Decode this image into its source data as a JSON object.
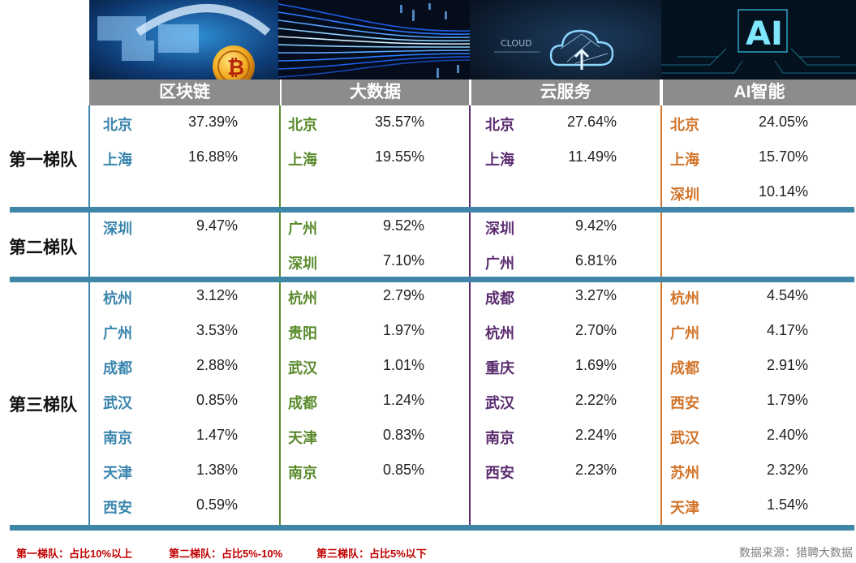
{
  "columns": [
    {
      "key": "blockchain",
      "title": "区块链",
      "color": "#3a85ad"
    },
    {
      "key": "bigdata",
      "title": "大数据",
      "color": "#5a8a2c"
    },
    {
      "key": "cloud",
      "title": "云服务",
      "color": "#5b2c6f"
    },
    {
      "key": "ai",
      "title": "AI智能",
      "color": "#d2742a"
    }
  ],
  "image_text": {
    "cloud_label": "CLOUD",
    "ai_label": "AI"
  },
  "tiers": [
    {
      "label": "第一梯队"
    },
    {
      "label": "第二梯队"
    },
    {
      "label": "第三梯队"
    }
  ],
  "data": {
    "blockchain": [
      [
        [
          "北京",
          "37.39%"
        ],
        [
          "上海",
          "16.88%"
        ]
      ],
      [
        [
          "深圳",
          "9.47%"
        ]
      ],
      [
        [
          "杭州",
          "3.12%"
        ],
        [
          "广州",
          "3.53%"
        ],
        [
          "成都",
          "2.88%"
        ],
        [
          "武汉",
          "0.85%"
        ],
        [
          "南京",
          "1.47%"
        ],
        [
          "天津",
          "1.38%"
        ],
        [
          "西安",
          "0.59%"
        ]
      ]
    ],
    "bigdata": [
      [
        [
          "北京",
          "35.57%"
        ],
        [
          "上海",
          "19.55%"
        ]
      ],
      [
        [
          "广州",
          "9.52%"
        ],
        [
          "深圳",
          "7.10%"
        ]
      ],
      [
        [
          "杭州",
          "2.79%"
        ],
        [
          "贵阳",
          "1.97%"
        ],
        [
          "武汉",
          "1.01%"
        ],
        [
          "成都",
          "1.24%"
        ],
        [
          "天津",
          "0.83%"
        ],
        [
          "南京",
          "0.85%"
        ]
      ]
    ],
    "cloud": [
      [
        [
          "北京",
          "27.64%"
        ],
        [
          "上海",
          "11.49%"
        ]
      ],
      [
        [
          "深圳",
          "9.42%"
        ],
        [
          "广州",
          "6.81%"
        ]
      ],
      [
        [
          "成都",
          "3.27%"
        ],
        [
          "杭州",
          "2.70%"
        ],
        [
          "重庆",
          "1.69%"
        ],
        [
          "武汉",
          "2.22%"
        ],
        [
          "南京",
          "2.24%"
        ],
        [
          "西安",
          "2.23%"
        ]
      ]
    ],
    "ai": [
      [
        [
          "北京",
          "24.05%"
        ],
        [
          "上海",
          "15.70%"
        ],
        [
          "深圳",
          "10.14%"
        ]
      ],
      [],
      [
        [
          "杭州",
          "4.54%"
        ],
        [
          "广州",
          "4.17%"
        ],
        [
          "成都",
          "2.91%"
        ],
        [
          "西安",
          "1.79%"
        ],
        [
          "武汉",
          "2.40%"
        ],
        [
          "苏州",
          "2.32%"
        ],
        [
          "天津",
          "1.54%"
        ]
      ]
    ]
  },
  "footer": {
    "legend": [
      "第一梯队：占比10%以上",
      "第二梯队：占比5%-10%",
      "第三梯队：占比5%以下"
    ],
    "source": "数据来源：猎聘大数据"
  }
}
